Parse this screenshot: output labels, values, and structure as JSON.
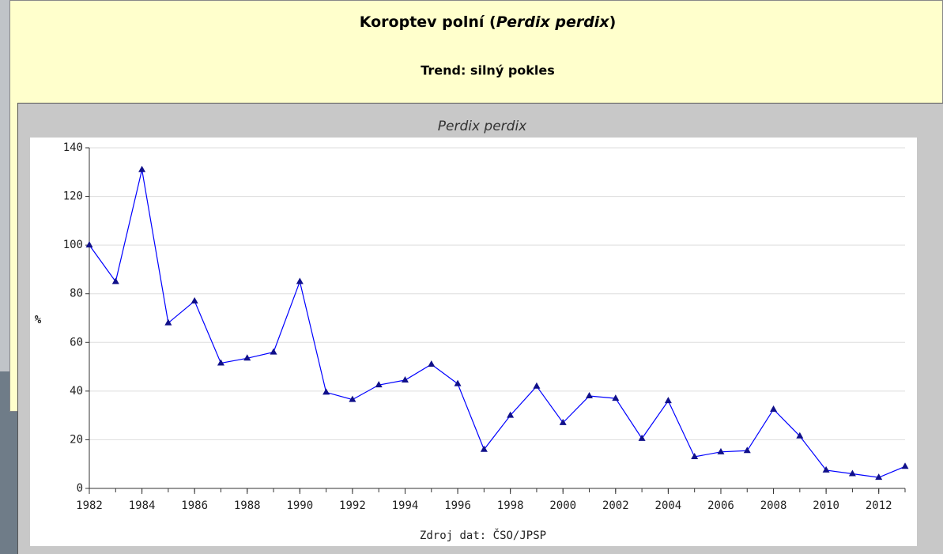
{
  "header": {
    "title": {
      "prefix": "Koroptev polní (",
      "italic": "Perdix perdix",
      "suffix": ")"
    },
    "subtitle": "Trend: silný pokles"
  },
  "chart_data": {
    "type": "line",
    "title": "Perdix perdix",
    "y_label": "%",
    "source": "Zdroj dat: ČSO/JPSP",
    "x": [
      1982,
      1983,
      1984,
      1985,
      1986,
      1987,
      1988,
      1989,
      1990,
      1991,
      1992,
      1993,
      1994,
      1995,
      1996,
      1997,
      1998,
      1999,
      2000,
      2001,
      2002,
      2003,
      2004,
      2005,
      2006,
      2007,
      2008,
      2009,
      2010,
      2011,
      2012,
      2013
    ],
    "series": [
      {
        "name": "Perdix perdix",
        "color": "#0000ff",
        "marker_color": "#10108a",
        "values": [
          100,
          85,
          131,
          68,
          77,
          51.5,
          53.5,
          56,
          85,
          39.5,
          36.5,
          42.5,
          44.5,
          51,
          43,
          16,
          30,
          42,
          27,
          38,
          37,
          20.5,
          36,
          13,
          15,
          15.5,
          32.5,
          21.5,
          7.5,
          6,
          4.5,
          9
        ]
      }
    ],
    "xlim": [
      1982,
      2013
    ],
    "xticks": [
      1982,
      1984,
      1986,
      1988,
      1990,
      1992,
      1994,
      1996,
      1998,
      2000,
      2002,
      2004,
      2006,
      2008,
      2010,
      2012
    ],
    "ylim": [
      0,
      140
    ],
    "yticks": [
      0,
      20,
      40,
      60,
      80,
      100,
      120,
      140
    ],
    "grid": true
  }
}
